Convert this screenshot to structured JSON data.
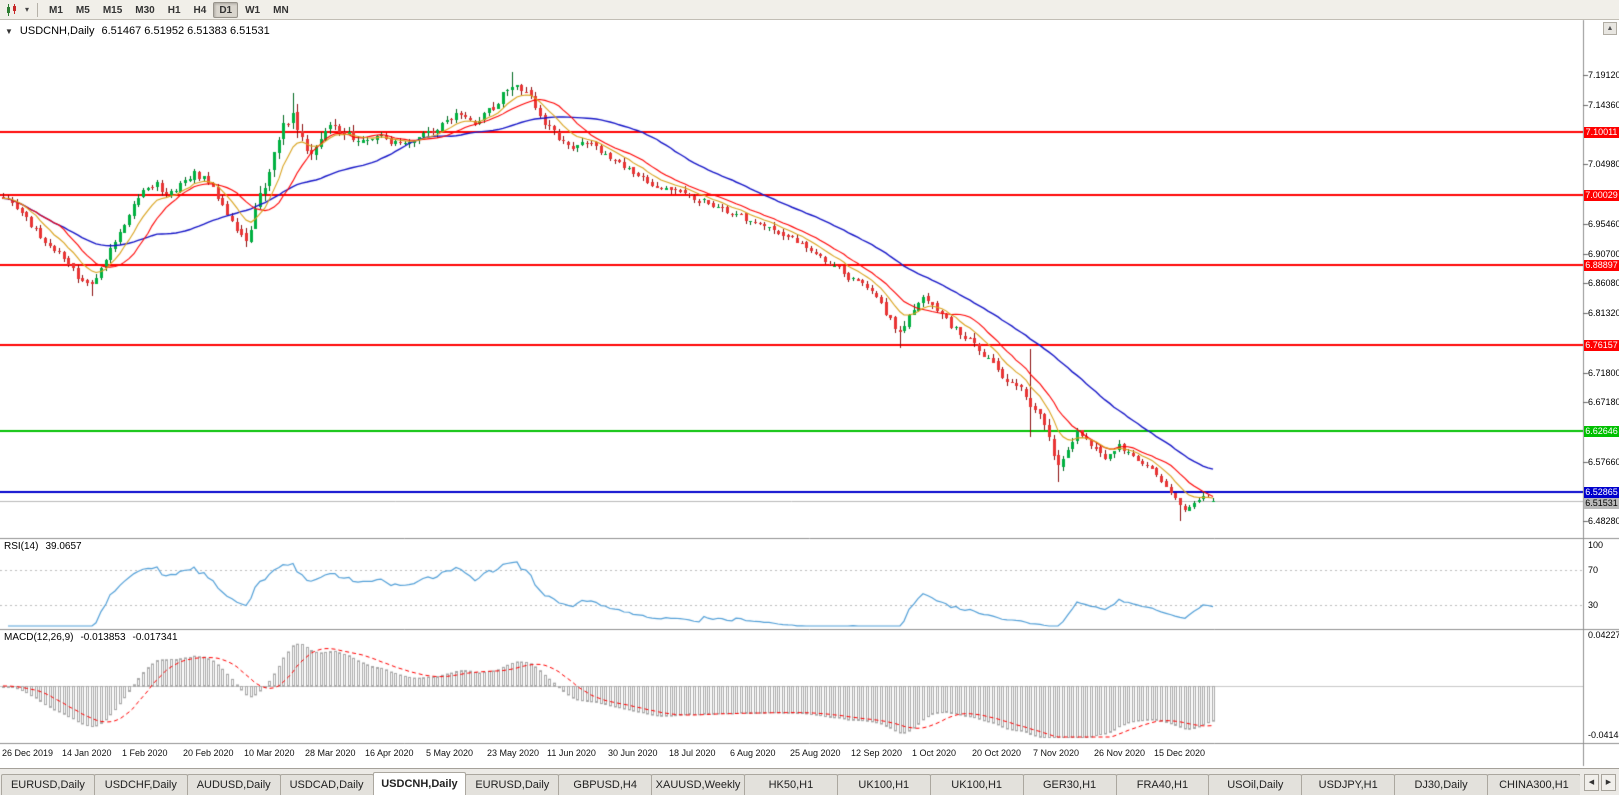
{
  "toolbar": {
    "timeframes": [
      "M1",
      "M5",
      "M15",
      "M30",
      "H1",
      "H4",
      "D1",
      "W1",
      "MN"
    ],
    "active_timeframe": "D1"
  },
  "icons": {
    "collapse": "▼",
    "menu_caret": "▾",
    "scroll_up": "▲",
    "tabs_left": "◀",
    "tabs_right": "▶"
  },
  "title": {
    "collapse_icon": "▼",
    "symbol": "USDCNH,Daily",
    "ohlc": "6.51467 6.51952 6.51383 6.51531"
  },
  "price_axis": {
    "ticks": [
      "7.19120",
      "7.14360",
      "7.04980",
      "6.95460",
      "6.90700",
      "6.86080",
      "6.81320",
      "6.71800",
      "6.67180",
      "6.57660",
      "6.48280"
    ]
  },
  "current_price_label": {
    "text": "6.51531"
  },
  "panels": {
    "rsi": {
      "name": "RSI(14)",
      "value": "39.0657",
      "axis_labels": [
        {
          "text": "100",
          "value": 100
        },
        {
          "text": "70",
          "value": 70
        },
        {
          "text": "30",
          "value": 30
        }
      ]
    },
    "macd": {
      "name": "MACD(12,26,9)",
      "main_value": "-0.013853",
      "signal_value": "-0.017341",
      "axis_top": "0.042275",
      "axis_bottom": "-0.041485"
    }
  },
  "tabs": {
    "active_index": 4,
    "items": [
      "EURUSD,Daily",
      "USDCHF,Daily",
      "AUDUSD,Daily",
      "USDCAD,Daily",
      "USDCNH,Daily",
      "EURUSD,Daily",
      "GBPUSD,H4",
      "XAUUSD,Weekly",
      "HK50,H1",
      "UK100,H1",
      "UK100,H1",
      "GER30,H1",
      "FRA40,H1",
      "USOil,Daily",
      "USDJPY,H1",
      "DJ30,Daily",
      "CHINA300,H1"
    ]
  },
  "chart_data": {
    "type": "candlestick",
    "symbol": "USDCNH",
    "timeframe": "Daily",
    "grid": "off",
    "candle_count": 260,
    "visible_price_range": [
      6.458,
      7.28
    ],
    "last_ohlc": {
      "open": 6.51467,
      "high": 6.51952,
      "low": 6.51383,
      "close": 6.51531
    },
    "current_price": 6.51531,
    "anchors": [
      [
        0,
        6.998
      ],
      [
        3,
        6.978
      ],
      [
        6,
        6.952
      ],
      [
        9,
        6.928
      ],
      [
        12,
        6.908
      ],
      [
        15,
        6.88
      ],
      [
        17,
        6.862
      ],
      [
        19,
        6.858
      ],
      [
        21,
        6.884
      ],
      [
        24,
        6.93
      ],
      [
        27,
        6.972
      ],
      [
        30,
        7.004
      ],
      [
        33,
        7.018
      ],
      [
        35,
        6.998
      ],
      [
        38,
        7.016
      ],
      [
        41,
        7.035
      ],
      [
        44,
        7.022
      ],
      [
        47,
        6.985
      ],
      [
        50,
        6.942
      ],
      [
        52,
        6.932
      ],
      [
        54,
        6.972
      ],
      [
        56,
        7.02
      ],
      [
        58,
        7.065
      ],
      [
        60,
        7.11
      ],
      [
        62,
        7.128
      ],
      [
        64,
        7.085
      ],
      [
        66,
        7.062
      ],
      [
        68,
        7.092
      ],
      [
        70,
        7.118
      ],
      [
        73,
        7.096
      ],
      [
        77,
        7.088
      ],
      [
        81,
        7.095
      ],
      [
        85,
        7.078
      ],
      [
        89,
        7.092
      ],
      [
        93,
        7.108
      ],
      [
        97,
        7.126
      ],
      [
        101,
        7.114
      ],
      [
        105,
        7.14
      ],
      [
        108,
        7.17
      ],
      [
        110,
        7.178
      ],
      [
        113,
        7.155
      ],
      [
        116,
        7.115
      ],
      [
        119,
        7.092
      ],
      [
        122,
        7.078
      ],
      [
        125,
        7.085
      ],
      [
        128,
        7.07
      ],
      [
        132,
        7.052
      ],
      [
        136,
        7.028
      ],
      [
        140,
        7.015
      ],
      [
        144,
        7.006
      ],
      [
        148,
        6.995
      ],
      [
        152,
        6.985
      ],
      [
        156,
        6.972
      ],
      [
        160,
        6.96
      ],
      [
        164,
        6.948
      ],
      [
        168,
        6.936
      ],
      [
        172,
        6.92
      ],
      [
        176,
        6.898
      ],
      [
        180,
        6.876
      ],
      [
        184,
        6.856
      ],
      [
        187,
        6.838
      ],
      [
        190,
        6.802
      ],
      [
        192,
        6.778
      ],
      [
        194,
        6.812
      ],
      [
        197,
        6.836
      ],
      [
        200,
        6.818
      ],
      [
        203,
        6.792
      ],
      [
        206,
        6.776
      ],
      [
        209,
        6.756
      ],
      [
        212,
        6.732
      ],
      [
        215,
        6.706
      ],
      [
        218,
        6.692
      ],
      [
        220,
        6.662
      ],
      [
        222,
        6.648
      ],
      [
        224,
        6.61
      ],
      [
        226,
        6.572
      ],
      [
        228,
        6.6
      ],
      [
        230,
        6.624
      ],
      [
        233,
        6.602
      ],
      [
        236,
        6.586
      ],
      [
        239,
        6.602
      ],
      [
        242,
        6.586
      ],
      [
        245,
        6.57
      ],
      [
        248,
        6.546
      ],
      [
        251,
        6.52
      ],
      [
        253,
        6.5
      ],
      [
        255,
        6.512
      ],
      [
        257,
        6.524
      ],
      [
        259,
        6.51531
      ]
    ],
    "spikes": [
      {
        "i": 19,
        "low": 6.84
      },
      {
        "i": 62,
        "high": 7.163
      },
      {
        "i": 109,
        "high": 7.1965
      },
      {
        "i": 192,
        "low": 6.757
      },
      {
        "i": 220,
        "high": 6.756,
        "low": 6.616
      },
      {
        "i": 226,
        "low": 6.545
      },
      {
        "i": 252,
        "low": 6.4835
      },
      {
        "i": 257,
        "high": 6.5305
      }
    ],
    "hlines": [
      {
        "price": 7.10011,
        "label": "7.10011",
        "color": "#ff0000"
      },
      {
        "price": 7.00029,
        "label": "7.00029",
        "color": "#ff0000"
      },
      {
        "price": 6.88897,
        "label": "6.88897",
        "color": "#ff0000"
      },
      {
        "price": 6.76157,
        "label": "6.76157",
        "color": "#ff0000"
      },
      {
        "price": 6.62646,
        "label": "6.62646",
        "color": "#00c000"
      },
      {
        "price": 6.52865,
        "label": "6.52865",
        "color": "#0000cd"
      }
    ],
    "moving_averages": [
      {
        "type": "ema",
        "period": 8,
        "color": "#d9a21b"
      },
      {
        "type": "sma",
        "period": 13,
        "color": "#ff0000"
      },
      {
        "type": "sma",
        "period": 34,
        "color": "#1616c8"
      }
    ],
    "rsi": {
      "period": 14,
      "current": 39.0657,
      "levels": [
        70,
        30
      ],
      "line_color": "#53a0d8"
    },
    "macd": {
      "fast": 12,
      "slow": 26,
      "signal": 9,
      "current_main": -0.013853,
      "current_signal": -0.017341,
      "axis_max": 0.042275,
      "axis_min": -0.041485,
      "hist_color": "#a9a9a9",
      "signal_color": "#ff0000"
    },
    "colors": {
      "up": "#00b141",
      "up_border": "#00691f",
      "down": "#e93434",
      "down_border": "#8c1010",
      "current_price_line": "#b9b9b9"
    },
    "x_dates": [
      "26 Dec 2019",
      "14 Jan 2020",
      "1 Feb 2020",
      "20 Feb 2020",
      "10 Mar 2020",
      "28 Mar 2020",
      "16 Apr 2020",
      "5 May 2020",
      "23 May 2020",
      "11 Jun 2020",
      "30 Jun 2020",
      "18 Jul 2020",
      "6 Aug 2020",
      "25 Aug 2020",
      "12 Sep 2020",
      "1 Oct 2020",
      "20 Oct 2020",
      "7 Nov 2020",
      "26 Nov 2020",
      "15 Dec 2020"
    ]
  }
}
